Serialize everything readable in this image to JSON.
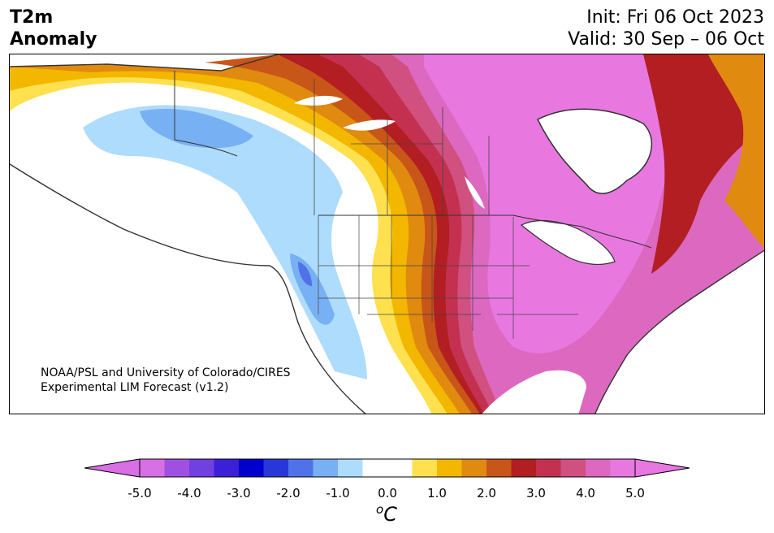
{
  "title": {
    "line1": "T2m",
    "line2": "Anomaly"
  },
  "dates": {
    "init": "Init: Fri 06 Oct 2023",
    "valid": "Valid: 30 Sep – 06 Oct"
  },
  "credit": {
    "line1": "NOAA/PSL and University of Colorado/CIRES",
    "line2": "Experimental LIM Forecast (v1.2)"
  },
  "colorbar": {
    "colors": [
      "#d86fe4",
      "#a050e0",
      "#7040e0",
      "#3c20d8",
      "#0000cc",
      "#2838d8",
      "#4f72e8",
      "#78b0f4",
      "#aedcfc",
      "#ffffff",
      "#ffffff",
      "#ffe04e",
      "#f3b700",
      "#e08a10",
      "#c85618",
      "#b21e22",
      "#c43050",
      "#d05080",
      "#dc68c0",
      "#e878e0"
    ],
    "left_ext": "#d86fe4",
    "right_ext": "#e878e0",
    "ticks": [
      "-5.0",
      "-4.0",
      "-3.0",
      "-2.0",
      "-1.0",
      "0.0",
      "1.0",
      "2.0",
      "3.0",
      "4.0",
      "5.0"
    ],
    "units_base": "C",
    "units_sup": "o"
  }
}
